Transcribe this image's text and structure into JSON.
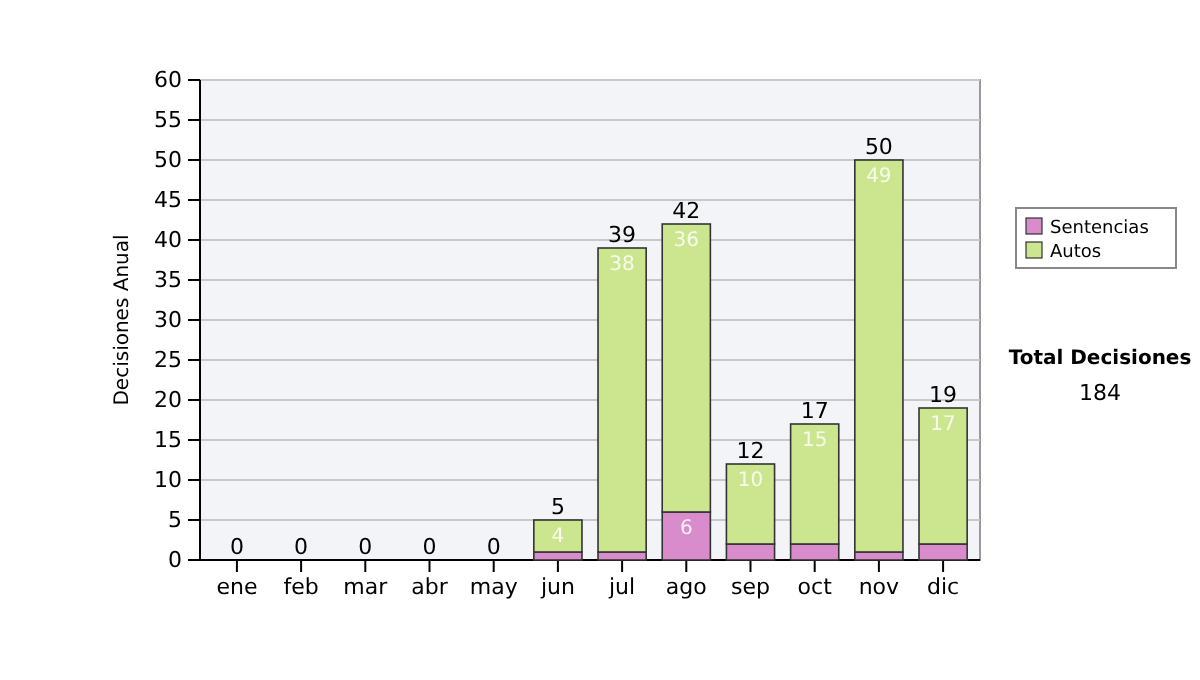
{
  "chart_data": {
    "type": "bar",
    "stacked": true,
    "ylabel": "Decisiones Anual",
    "categories": [
      "ene",
      "feb",
      "mar",
      "abr",
      "may",
      "jun",
      "jul",
      "ago",
      "sep",
      "oct",
      "nov",
      "dic"
    ],
    "series": [
      {
        "name": "Sentencias",
        "color": "#d98ccc",
        "values": [
          0,
          0,
          0,
          0,
          0,
          1,
          1,
          6,
          2,
          2,
          1,
          2
        ],
        "value_labels": [
          null,
          null,
          null,
          null,
          null,
          null,
          null,
          "6",
          null,
          null,
          null,
          null
        ]
      },
      {
        "name": "Autos",
        "color": "#cce68f",
        "values": [
          0,
          0,
          0,
          0,
          0,
          4,
          38,
          36,
          10,
          15,
          49,
          17
        ],
        "value_labels": [
          null,
          null,
          null,
          null,
          null,
          "4",
          "38",
          "36",
          "10",
          "15",
          "49",
          "17"
        ]
      }
    ],
    "totals": [
      "0",
      "0",
      "0",
      "0",
      "0",
      "5",
      "39",
      "42",
      "12",
      "17",
      "50",
      "19"
    ],
    "ylim": [
      0,
      60
    ],
    "yticks": [
      0,
      5,
      10,
      15,
      20,
      25,
      30,
      35,
      40,
      45,
      50,
      55,
      60
    ],
    "grid": "y",
    "legend": "right",
    "annotations": [
      "Total Decisiones",
      "184"
    ]
  }
}
